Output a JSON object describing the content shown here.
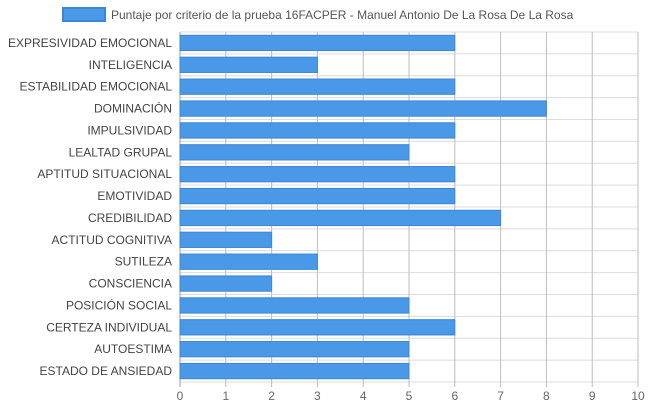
{
  "chart_data": {
    "type": "bar",
    "orientation": "horizontal",
    "legend": {
      "label": "Puntaje por criterio de la prueba 16FACPER - Manuel Antonio De La Rosa De La Rosa",
      "placement": "top-center"
    },
    "categories": [
      "EXPRESIVIDAD EMOCIONAL",
      "INTELIGENCIA",
      "ESTABILIDAD EMOCIONAL",
      "DOMINACIÓN",
      "IMPULSIVIDAD",
      "LEALTAD GRUPAL",
      "APTITUD SITUACIONAL",
      "EMOTIVIDAD",
      "CREDIBILIDAD",
      "ACTITUD COGNITIVA",
      "SUTILEZA",
      "CONSCIENCIA",
      "POSICIÓN SOCIAL",
      "CERTEZA INDIVIDUAL",
      "AUTOESTIMA",
      "ESTADO DE ANSIEDAD"
    ],
    "series": [
      {
        "name": "Puntaje por criterio de la prueba 16FACPER - Manuel Antonio De La Rosa De La Rosa",
        "values": [
          6,
          3,
          6,
          8,
          6,
          5,
          6,
          6,
          7,
          2,
          3,
          2,
          5,
          6,
          5,
          5
        ]
      }
    ],
    "xlim": [
      0,
      10
    ],
    "x_ticks": [
      "0",
      "1",
      "2",
      "3",
      "4",
      "5",
      "6",
      "7",
      "8",
      "9",
      "10"
    ],
    "grid": true,
    "colors": {
      "bar_fill": "#4a98e8",
      "bar_stroke": "#3d86d4",
      "grid": "#dcdcdc",
      "axis_text": "#666666",
      "label_text": "#444444"
    }
  }
}
